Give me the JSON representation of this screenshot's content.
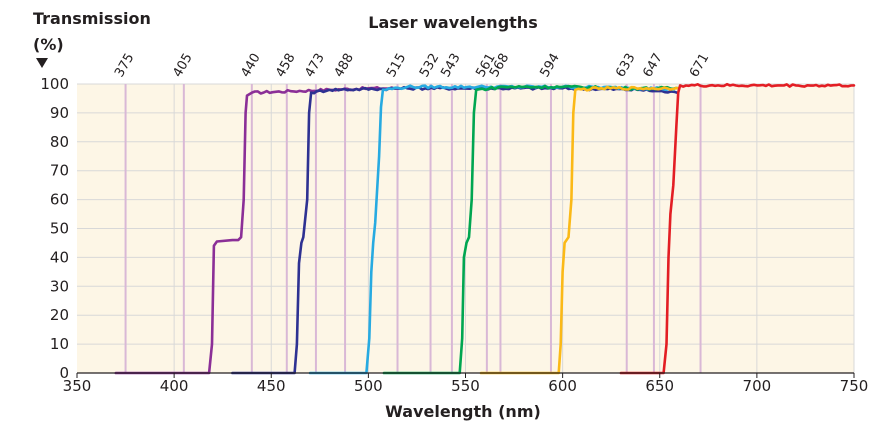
{
  "chart_data": {
    "type": "line",
    "title": "Laser wavelengths",
    "ylabel_line1": "Transmission",
    "ylabel_line2": "(%)",
    "xlabel": "Wavelength (nm)",
    "xlim": [
      350,
      750
    ],
    "ylim": [
      0,
      100
    ],
    "x_ticks": [
      350,
      400,
      450,
      500,
      550,
      600,
      650,
      700,
      750
    ],
    "y_ticks": [
      0,
      10,
      20,
      30,
      40,
      50,
      60,
      70,
      80,
      90,
      100
    ],
    "grid": true,
    "colors": {
      "background": "#fdf6e6",
      "gridline": "#d8d8d8",
      "laser_line": "#d9b8d6",
      "axis": "#231f20"
    },
    "laser_wavelengths": [
      375,
      405,
      440,
      458,
      473,
      488,
      515,
      532,
      543,
      561,
      568,
      594,
      633,
      647,
      671
    ],
    "series": [
      {
        "color": "#8b2f97",
        "points": [
          [
            370,
            0
          ],
          [
            418,
            0
          ],
          [
            419.5,
            10
          ],
          [
            420.5,
            44
          ],
          [
            422,
            45.5
          ],
          [
            430,
            46
          ],
          [
            433,
            46
          ],
          [
            434.5,
            47
          ],
          [
            435.8,
            60
          ],
          [
            436.8,
            90
          ],
          [
            437.5,
            96
          ],
          [
            440,
            97
          ],
          [
            460,
            97.5
          ],
          [
            480,
            98
          ],
          [
            500,
            98.5
          ],
          [
            515,
            98.5
          ]
        ]
      },
      {
        "color": "#2e3192",
        "points": [
          [
            430,
            0
          ],
          [
            462,
            0
          ],
          [
            463.2,
            10
          ],
          [
            464.3,
            38
          ],
          [
            465.5,
            45
          ],
          [
            466.5,
            47
          ],
          [
            468.5,
            60
          ],
          [
            469.5,
            90
          ],
          [
            470.5,
            97
          ],
          [
            480,
            98
          ],
          [
            520,
            98.5
          ],
          [
            560,
            98.5
          ],
          [
            600,
            98.5
          ],
          [
            640,
            98
          ],
          [
            659,
            97
          ]
        ]
      },
      {
        "color": "#27aae1",
        "points": [
          [
            470,
            0
          ],
          [
            499,
            0
          ],
          [
            500.5,
            12
          ],
          [
            501.5,
            35
          ],
          [
            502.5,
            45
          ],
          [
            503.5,
            52
          ],
          [
            505.5,
            75
          ],
          [
            506.5,
            92
          ],
          [
            507.5,
            98
          ],
          [
            520,
            99
          ],
          [
            560,
            99
          ],
          [
            600,
            99
          ],
          [
            650,
            98.5
          ],
          [
            657,
            98
          ]
        ]
      },
      {
        "color": "#00a651",
        "points": [
          [
            508,
            0
          ],
          [
            547,
            0
          ],
          [
            548.3,
            12
          ],
          [
            549.2,
            40
          ],
          [
            550.5,
            45
          ],
          [
            551.8,
            47
          ],
          [
            553.2,
            60
          ],
          [
            554.3,
            90
          ],
          [
            555.5,
            98
          ],
          [
            570,
            99
          ],
          [
            600,
            99
          ],
          [
            640,
            98.5
          ],
          [
            660,
            98.5
          ]
        ]
      },
      {
        "color": "#fbb917",
        "points": [
          [
            558,
            0
          ],
          [
            598,
            0
          ],
          [
            599,
            10
          ],
          [
            600,
            35
          ],
          [
            601,
            45
          ],
          [
            603,
            47
          ],
          [
            604.5,
            60
          ],
          [
            605.5,
            90
          ],
          [
            606.5,
            98
          ],
          [
            620,
            98.5
          ],
          [
            640,
            98.5
          ],
          [
            660,
            98.5
          ]
        ]
      },
      {
        "color": "#e31e24",
        "points": [
          [
            630,
            0
          ],
          [
            652,
            0
          ],
          [
            653.5,
            10
          ],
          [
            654.5,
            40
          ],
          [
            655.5,
            55
          ],
          [
            657,
            65
          ],
          [
            658.5,
            85
          ],
          [
            659.5,
            97
          ],
          [
            660.5,
            99.5
          ],
          [
            680,
            99.5
          ],
          [
            700,
            99.5
          ],
          [
            720,
            99.5
          ],
          [
            750,
            99.5
          ]
        ]
      }
    ]
  }
}
